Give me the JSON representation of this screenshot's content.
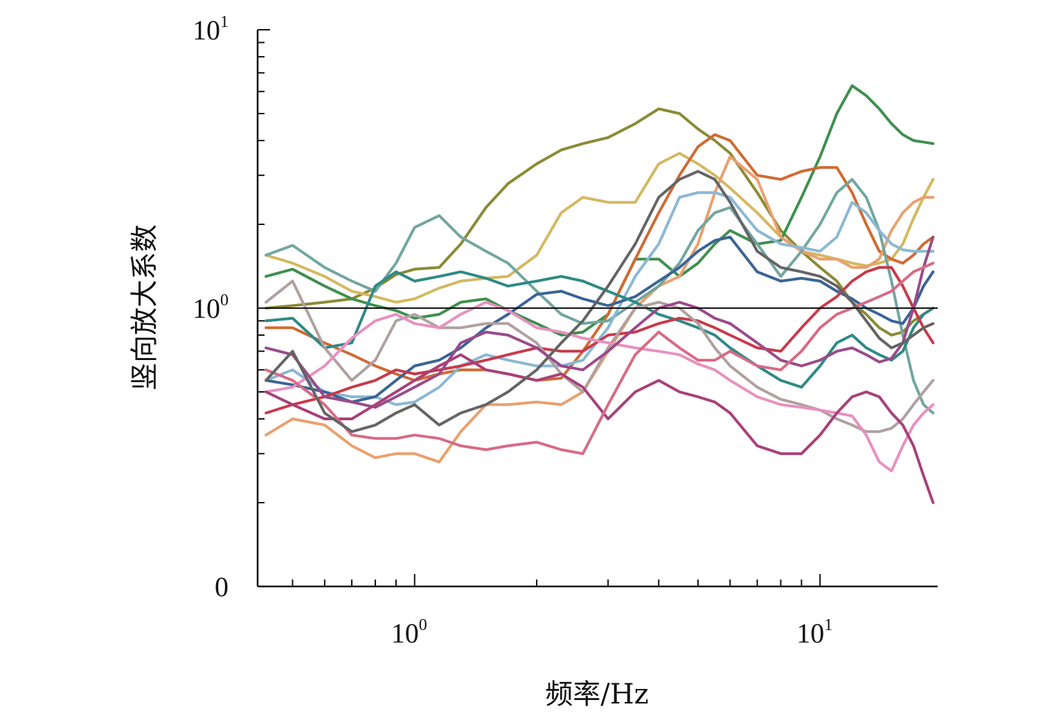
{
  "chart_data": {
    "type": "line",
    "title": "",
    "xlabel": "频率/Hz",
    "ylabel": "竖向放大系数",
    "x_scale": "log",
    "y_scale": "log",
    "xlim": [
      0.41,
      19.5
    ],
    "ylim": [
      0.1,
      10
    ],
    "x_ticks": [
      {
        "base": "10",
        "exp": "0",
        "value": 1
      },
      {
        "base": "10",
        "exp": "1",
        "value": 10
      }
    ],
    "y_ticks": [
      {
        "base": "10",
        "exp": "1",
        "value": 10
      },
      {
        "base": "10",
        "exp": "0",
        "value": 1
      },
      {
        "base": "0",
        "exp": "",
        "value": 0.1
      }
    ],
    "reference_line": 1.0,
    "grid": false,
    "legend": "none",
    "x": [
      0.43,
      0.5,
      0.6,
      0.7,
      0.8,
      0.9,
      1.0,
      1.15,
      1.3,
      1.5,
      1.7,
      2.0,
      2.3,
      2.6,
      3.0,
      3.5,
      4.0,
      4.5,
      5.0,
      5.5,
      6.0,
      7.0,
      8.0,
      9.0,
      10.0,
      11.0,
      12.0,
      13.0,
      14.0,
      15.0,
      16.0,
      17.0,
      18.0,
      19.0
    ],
    "series": [
      {
        "color": "#8a8a34",
        "values": [
          1.0,
          1.02,
          1.05,
          1.08,
          1.18,
          1.32,
          1.38,
          1.4,
          1.7,
          2.3,
          2.8,
          3.3,
          3.7,
          3.9,
          4.1,
          4.6,
          5.2,
          5.0,
          4.4,
          4.0,
          3.6,
          2.6,
          1.9,
          1.6,
          1.4,
          1.25,
          1.05,
          0.95,
          0.85,
          0.8,
          0.82,
          0.9,
          0.95,
          1.0
        ]
      },
      {
        "color": "#d4b860",
        "values": [
          1.55,
          1.45,
          1.3,
          1.15,
          1.1,
          1.05,
          1.08,
          1.18,
          1.25,
          1.28,
          1.3,
          1.55,
          2.2,
          2.5,
          2.4,
          2.4,
          3.3,
          3.6,
          3.3,
          3.0,
          2.7,
          2.2,
          1.8,
          1.6,
          1.55,
          1.5,
          1.45,
          1.42,
          1.45,
          1.5,
          1.7,
          2.1,
          2.5,
          2.9
        ]
      },
      {
        "color": "#3f8f4e",
        "values": [
          1.3,
          1.38,
          1.2,
          1.08,
          1.02,
          0.98,
          0.92,
          0.95,
          1.05,
          1.08,
          0.98,
          0.88,
          0.8,
          0.82,
          0.95,
          1.5,
          1.5,
          1.3,
          1.45,
          1.7,
          1.9,
          1.7,
          1.75,
          2.5,
          3.5,
          5.0,
          6.3,
          5.8,
          5.2,
          4.6,
          4.2,
          4.0,
          3.95,
          3.9
        ]
      },
      {
        "color": "#d06a32",
        "values": [
          0.85,
          0.85,
          0.75,
          0.68,
          0.62,
          0.58,
          0.55,
          0.58,
          0.6,
          0.6,
          0.58,
          0.55,
          0.56,
          0.7,
          0.95,
          1.5,
          2.2,
          3.0,
          3.8,
          4.2,
          4.0,
          3.0,
          2.9,
          3.1,
          3.2,
          3.2,
          2.6,
          2.0,
          1.6,
          1.5,
          1.45,
          1.55,
          1.7,
          1.8
        ]
      },
      {
        "color": "#e9a06e",
        "values": [
          0.35,
          0.4,
          0.38,
          0.32,
          0.29,
          0.3,
          0.3,
          0.28,
          0.36,
          0.45,
          0.45,
          0.46,
          0.45,
          0.5,
          0.7,
          1.0,
          1.2,
          1.3,
          1.7,
          2.6,
          3.5,
          2.9,
          1.8,
          1.6,
          1.5,
          1.5,
          1.4,
          1.4,
          1.5,
          1.9,
          2.2,
          2.4,
          2.5,
          2.5
        ]
      },
      {
        "color": "#72a6a0",
        "values": [
          1.55,
          1.68,
          1.4,
          1.25,
          1.15,
          1.45,
          1.95,
          2.15,
          1.8,
          1.6,
          1.45,
          1.15,
          0.95,
          0.88,
          0.9,
          1.05,
          1.2,
          1.45,
          1.9,
          2.2,
          2.3,
          1.7,
          1.3,
          1.6,
          2.0,
          2.6,
          2.9,
          2.5,
          1.9,
          1.25,
          0.8,
          0.55,
          0.45,
          0.42
        ]
      },
      {
        "color": "#8ab8d4",
        "values": [
          0.55,
          0.6,
          0.5,
          0.48,
          0.48,
          0.45,
          0.46,
          0.52,
          0.62,
          0.68,
          0.65,
          0.62,
          0.62,
          0.65,
          0.85,
          1.3,
          1.7,
          2.5,
          2.6,
          2.6,
          2.5,
          1.9,
          1.7,
          1.65,
          1.6,
          1.8,
          2.4,
          2.2,
          1.9,
          1.7,
          1.62,
          1.6,
          1.6,
          1.6
        ]
      },
      {
        "color": "#3a6496",
        "values": [
          0.55,
          0.53,
          0.5,
          0.46,
          0.48,
          0.55,
          0.62,
          0.65,
          0.72,
          0.85,
          0.95,
          1.12,
          1.15,
          1.08,
          1.02,
          1.1,
          1.25,
          1.4,
          1.6,
          1.75,
          1.8,
          1.35,
          1.25,
          1.28,
          1.25,
          1.15,
          1.08,
          1.0,
          0.95,
          0.9,
          0.88,
          1.0,
          1.2,
          1.35
        ]
      },
      {
        "color": "#2f8a86",
        "values": [
          0.9,
          0.92,
          0.72,
          0.75,
          1.2,
          1.35,
          1.25,
          1.3,
          1.35,
          1.28,
          1.2,
          1.25,
          1.3,
          1.25,
          1.15,
          1.05,
          0.95,
          0.9,
          0.85,
          0.8,
          0.72,
          0.62,
          0.55,
          0.52,
          0.62,
          0.75,
          0.8,
          0.72,
          0.68,
          0.65,
          0.7,
          0.85,
          0.95,
          1.0
        ]
      },
      {
        "color": "#c83a4a",
        "values": [
          0.42,
          0.45,
          0.48,
          0.52,
          0.55,
          0.6,
          0.58,
          0.6,
          0.62,
          0.65,
          0.68,
          0.72,
          0.7,
          0.7,
          0.8,
          0.82,
          0.88,
          0.92,
          0.9,
          0.85,
          0.8,
          0.72,
          0.7,
          0.85,
          1.0,
          1.1,
          1.25,
          1.35,
          1.4,
          1.4,
          1.2,
          1.0,
          0.85,
          0.75
        ]
      },
      {
        "color": "#b0a0a0",
        "values": [
          1.05,
          1.25,
          0.72,
          0.55,
          0.65,
          0.9,
          0.95,
          0.85,
          0.85,
          0.88,
          0.88,
          0.75,
          0.58,
          0.5,
          0.72,
          1.0,
          1.05,
          1.0,
          0.88,
          0.72,
          0.62,
          0.52,
          0.47,
          0.45,
          0.43,
          0.4,
          0.38,
          0.36,
          0.36,
          0.37,
          0.4,
          0.45,
          0.5,
          0.55
        ]
      },
      {
        "color": "#e890c0",
        "values": [
          0.5,
          0.52,
          0.62,
          0.78,
          0.9,
          0.95,
          0.88,
          0.85,
          0.95,
          1.05,
          0.98,
          0.85,
          0.82,
          0.78,
          0.75,
          0.72,
          0.7,
          0.68,
          0.63,
          0.6,
          0.55,
          0.48,
          0.45,
          0.44,
          0.43,
          0.42,
          0.41,
          0.35,
          0.28,
          0.26,
          0.32,
          0.38,
          0.42,
          0.45
        ]
      },
      {
        "color": "#9a4a8a",
        "values": [
          0.72,
          0.68,
          0.48,
          0.46,
          0.44,
          0.48,
          0.52,
          0.58,
          0.75,
          0.82,
          0.8,
          0.72,
          0.62,
          0.6,
          0.7,
          0.85,
          1.0,
          1.05,
          1.0,
          0.92,
          0.88,
          0.75,
          0.65,
          0.62,
          0.65,
          0.7,
          0.72,
          0.68,
          0.64,
          0.66,
          0.75,
          1.0,
          1.4,
          1.8
        ]
      },
      {
        "color": "#a8407a",
        "values": [
          0.5,
          0.45,
          0.4,
          0.4,
          0.45,
          0.5,
          0.55,
          0.62,
          0.68,
          0.6,
          0.58,
          0.55,
          0.58,
          0.52,
          0.4,
          0.5,
          0.55,
          0.5,
          0.48,
          0.46,
          0.42,
          0.32,
          0.3,
          0.3,
          0.35,
          0.42,
          0.48,
          0.5,
          0.48,
          0.42,
          0.38,
          0.32,
          0.25,
          0.2
        ]
      },
      {
        "color": "#d86a84",
        "values": [
          0.6,
          0.55,
          0.45,
          0.35,
          0.34,
          0.34,
          0.35,
          0.34,
          0.32,
          0.31,
          0.32,
          0.33,
          0.31,
          0.3,
          0.45,
          0.68,
          0.82,
          0.72,
          0.65,
          0.65,
          0.7,
          0.62,
          0.6,
          0.7,
          0.85,
          0.95,
          1.0,
          1.05,
          1.1,
          1.15,
          1.25,
          1.35,
          1.4,
          1.45
        ]
      },
      {
        "color": "#646464",
        "values": [
          0.55,
          0.7,
          0.42,
          0.36,
          0.38,
          0.42,
          0.45,
          0.38,
          0.42,
          0.45,
          0.5,
          0.6,
          0.75,
          0.9,
          1.2,
          1.7,
          2.5,
          2.9,
          3.1,
          2.9,
          2.4,
          1.6,
          1.4,
          1.35,
          1.3,
          1.2,
          1.05,
          0.9,
          0.78,
          0.72,
          0.75,
          0.8,
          0.85,
          0.88
        ]
      }
    ]
  }
}
